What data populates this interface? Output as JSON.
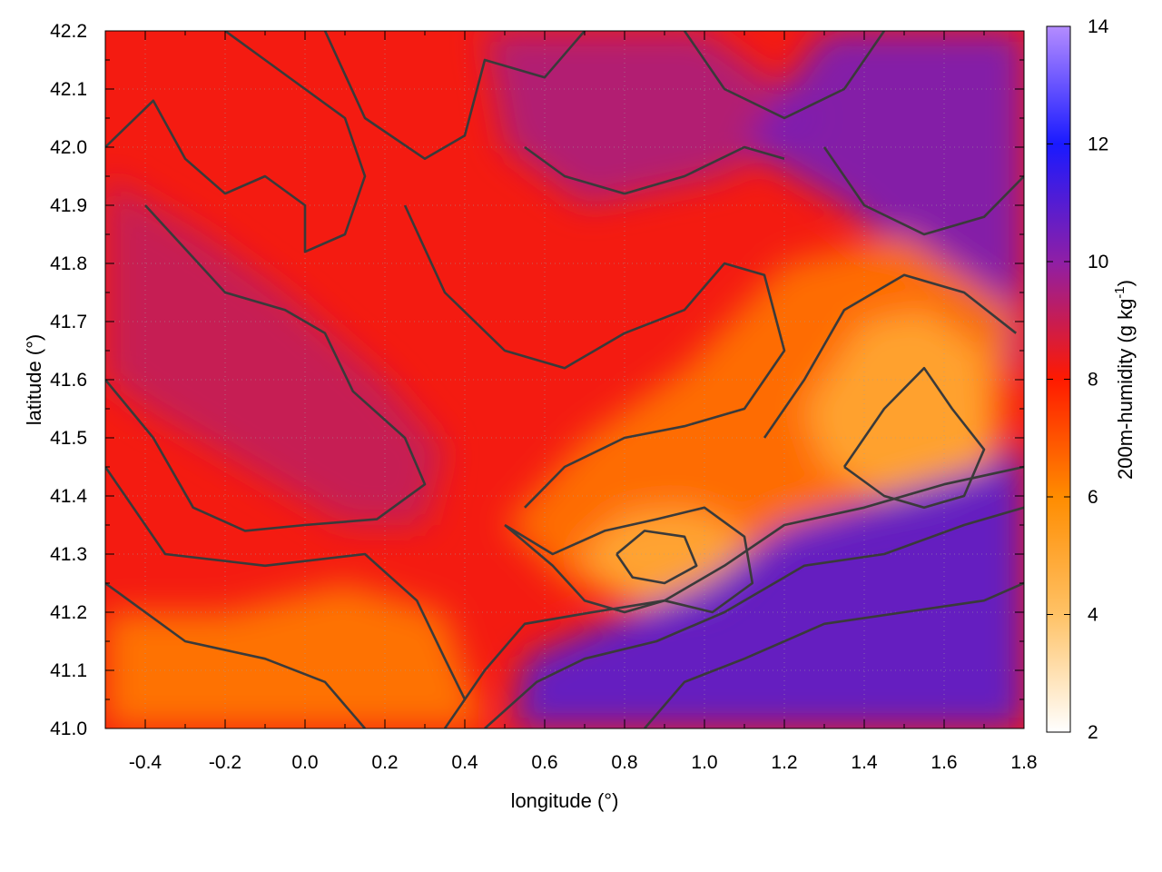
{
  "chart_data": {
    "type": "heatmap",
    "title": "",
    "xlabel": "longitude (°)",
    "ylabel": "latitude (°)",
    "xlim": [
      -0.5,
      1.8
    ],
    "ylim": [
      41.0,
      42.2
    ],
    "xticks": [
      -0.4,
      -0.2,
      0.0,
      0.2,
      0.4,
      0.6,
      0.8,
      1.0,
      1.2,
      1.4,
      1.6,
      1.8
    ],
    "xtick_labels": [
      "-0.4",
      "-0.2",
      "0.0",
      "0.2",
      "0.4",
      "0.6",
      "0.8",
      "1.0",
      "1.2",
      "1.4",
      "1.6",
      "1.8"
    ],
    "yticks": [
      41.0,
      41.1,
      41.2,
      41.3,
      41.4,
      41.5,
      41.6,
      41.7,
      41.8,
      41.9,
      42.0,
      42.1,
      42.2
    ],
    "ytick_labels": [
      "41.0",
      "41.1",
      "41.2",
      "41.3",
      "41.4",
      "41.5",
      "41.6",
      "41.7",
      "41.8",
      "41.9",
      "42.0",
      "42.1",
      "42.2"
    ],
    "grid": true,
    "colorbar": {
      "label_main": "200m-humidity (g kg",
      "label_sup": "-1",
      "label_end": ")",
      "range": [
        2,
        14
      ],
      "ticks": [
        2,
        4,
        6,
        8,
        10,
        12,
        14
      ],
      "tick_labels": [
        "2",
        "4",
        "6",
        "8",
        "10",
        "12",
        "14"
      ],
      "palette": [
        {
          "value": 2,
          "color": "#ffffff"
        },
        {
          "value": 4,
          "color": "#ffc266"
        },
        {
          "value": 6,
          "color": "#ff8c00"
        },
        {
          "value": 8,
          "color": "#ff1a00"
        },
        {
          "value": 10,
          "color": "#8f1fa6"
        },
        {
          "value": 12,
          "color": "#1a1aff"
        },
        {
          "value": 14,
          "color": "#b48cff"
        }
      ]
    },
    "regions": [
      {
        "name": "background",
        "value": 8.2
      },
      {
        "name": "west-purple",
        "value": 9.1,
        "points": [
          [
            -0.5,
            41.95
          ],
          [
            -0.25,
            41.85
          ],
          [
            -0.05,
            41.75
          ],
          [
            0.2,
            41.6
          ],
          [
            0.35,
            41.48
          ],
          [
            0.3,
            41.35
          ],
          [
            0.1,
            41.35
          ],
          [
            -0.15,
            41.45
          ],
          [
            -0.4,
            41.55
          ],
          [
            -0.5,
            41.6
          ]
        ]
      },
      {
        "name": "north-purple",
        "value": 9.5,
        "points": [
          [
            0.45,
            42.2
          ],
          [
            1.0,
            42.2
          ],
          [
            1.3,
            42.05
          ],
          [
            1.05,
            41.95
          ],
          [
            0.7,
            41.9
          ],
          [
            0.5,
            42.0
          ]
        ]
      },
      {
        "name": "northeast-blue",
        "value": 10.4,
        "points": [
          [
            1.3,
            42.2
          ],
          [
            1.8,
            42.2
          ],
          [
            1.8,
            41.6
          ],
          [
            1.6,
            41.75
          ],
          [
            1.35,
            41.9
          ],
          [
            1.1,
            42.0
          ],
          [
            1.2,
            42.1
          ]
        ]
      },
      {
        "name": "central-orange",
        "value": 6.4,
        "points": [
          [
            0.5,
            41.35
          ],
          [
            0.7,
            41.5
          ],
          [
            0.95,
            41.62
          ],
          [
            1.2,
            41.8
          ],
          [
            1.5,
            41.85
          ],
          [
            1.78,
            41.72
          ],
          [
            1.75,
            41.5
          ],
          [
            1.6,
            41.38
          ],
          [
            1.4,
            41.35
          ],
          [
            1.2,
            41.32
          ],
          [
            1.05,
            41.22
          ],
          [
            0.85,
            41.2
          ],
          [
            0.65,
            41.25
          ]
        ]
      },
      {
        "name": "central-light",
        "value": 4.9,
        "points": [
          [
            0.68,
            41.3
          ],
          [
            0.8,
            41.37
          ],
          [
            0.95,
            41.38
          ],
          [
            1.08,
            41.35
          ],
          [
            1.12,
            41.27
          ],
          [
            1.0,
            41.2
          ],
          [
            0.85,
            41.22
          ],
          [
            0.75,
            41.25
          ]
        ]
      },
      {
        "name": "east-light",
        "value": 5.0,
        "points": [
          [
            1.25,
            41.55
          ],
          [
            1.4,
            41.7
          ],
          [
            1.55,
            41.72
          ],
          [
            1.7,
            41.65
          ],
          [
            1.72,
            41.45
          ],
          [
            1.6,
            41.38
          ],
          [
            1.45,
            41.4
          ],
          [
            1.3,
            41.45
          ]
        ]
      },
      {
        "name": "southeast-sea",
        "value": 11.0,
        "points": [
          [
            0.52,
            41.0
          ],
          [
            0.55,
            41.12
          ],
          [
            0.75,
            41.18
          ],
          [
            1.0,
            41.25
          ],
          [
            1.2,
            41.35
          ],
          [
            1.45,
            41.4
          ],
          [
            1.7,
            41.45
          ],
          [
            1.8,
            41.5
          ],
          [
            1.8,
            41.0
          ]
        ]
      },
      {
        "name": "southwest-orange",
        "value": 6.3,
        "points": [
          [
            -0.5,
            41.2
          ],
          [
            -0.2,
            41.2
          ],
          [
            0.1,
            41.25
          ],
          [
            0.35,
            41.2
          ],
          [
            0.45,
            41.0
          ],
          [
            -0.5,
            41.0
          ]
        ]
      }
    ],
    "contours": [
      [
        [
          -0.5,
          42.0
        ],
        [
          -0.38,
          42.08
        ],
        [
          -0.3,
          41.98
        ],
        [
          -0.2,
          41.92
        ],
        [
          -0.1,
          41.95
        ],
        [
          0.0,
          41.9
        ],
        [
          0.0,
          41.82
        ],
        [
          0.1,
          41.85
        ],
        [
          0.15,
          41.95
        ],
        [
          0.1,
          42.05
        ],
        [
          0.0,
          42.1
        ],
        [
          -0.1,
          42.15
        ],
        [
          -0.2,
          42.2
        ]
      ],
      [
        [
          -0.4,
          41.9
        ],
        [
          -0.2,
          41.75
        ],
        [
          -0.05,
          41.72
        ],
        [
          0.05,
          41.68
        ],
        [
          0.12,
          41.58
        ],
        [
          0.25,
          41.5
        ],
        [
          0.3,
          41.42
        ],
        [
          0.18,
          41.36
        ],
        [
          0.0,
          41.35
        ],
        [
          -0.15,
          41.34
        ],
        [
          -0.28,
          41.38
        ],
        [
          -0.38,
          41.5
        ],
        [
          -0.5,
          41.6
        ]
      ],
      [
        [
          -0.5,
          41.45
        ],
        [
          -0.35,
          41.3
        ],
        [
          -0.1,
          41.28
        ],
        [
          0.15,
          41.3
        ],
        [
          0.28,
          41.22
        ],
        [
          0.35,
          41.12
        ],
        [
          0.4,
          41.05
        ]
      ],
      [
        [
          -0.5,
          41.25
        ],
        [
          -0.3,
          41.15
        ],
        [
          -0.1,
          41.12
        ],
        [
          0.05,
          41.08
        ],
        [
          0.15,
          41.0
        ]
      ],
      [
        [
          0.05,
          42.2
        ],
        [
          0.15,
          42.05
        ],
        [
          0.3,
          41.98
        ],
        [
          0.4,
          42.02
        ],
        [
          0.45,
          42.15
        ],
        [
          0.6,
          42.12
        ],
        [
          0.7,
          42.2
        ]
      ],
      [
        [
          0.25,
          41.9
        ],
        [
          0.35,
          41.75
        ],
        [
          0.5,
          41.65
        ],
        [
          0.65,
          41.62
        ],
        [
          0.8,
          41.68
        ],
        [
          0.95,
          41.72
        ],
        [
          1.05,
          41.8
        ],
        [
          1.15,
          41.78
        ],
        [
          1.2,
          41.65
        ],
        [
          1.1,
          41.55
        ],
        [
          0.95,
          41.52
        ],
        [
          0.8,
          41.5
        ],
        [
          0.65,
          41.45
        ],
        [
          0.55,
          41.38
        ]
      ],
      [
        [
          0.5,
          41.35
        ],
        [
          0.62,
          41.3
        ],
        [
          0.75,
          41.34
        ],
        [
          0.88,
          41.36
        ],
        [
          1.0,
          41.38
        ],
        [
          1.1,
          41.33
        ],
        [
          1.12,
          41.25
        ],
        [
          1.02,
          41.2
        ],
        [
          0.9,
          41.22
        ],
        [
          0.8,
          41.2
        ],
        [
          0.7,
          41.22
        ],
        [
          0.62,
          41.28
        ],
        [
          0.5,
          41.35
        ]
      ],
      [
        [
          0.78,
          41.3
        ],
        [
          0.85,
          41.34
        ],
        [
          0.95,
          41.33
        ],
        [
          0.98,
          41.28
        ],
        [
          0.9,
          41.25
        ],
        [
          0.82,
          41.26
        ],
        [
          0.78,
          41.3
        ]
      ],
      [
        [
          0.35,
          41.0
        ],
        [
          0.45,
          41.1
        ],
        [
          0.55,
          41.18
        ],
        [
          0.72,
          41.2
        ],
        [
          0.9,
          41.22
        ],
        [
          1.05,
          41.28
        ],
        [
          1.2,
          41.35
        ],
        [
          1.4,
          41.38
        ],
        [
          1.6,
          41.42
        ],
        [
          1.8,
          41.45
        ]
      ],
      [
        [
          0.45,
          41.0
        ],
        [
          0.58,
          41.08
        ],
        [
          0.7,
          41.12
        ],
        [
          0.88,
          41.15
        ],
        [
          1.05,
          41.2
        ],
        [
          1.25,
          41.28
        ],
        [
          1.45,
          41.3
        ],
        [
          1.65,
          41.35
        ],
        [
          1.8,
          41.38
        ]
      ],
      [
        [
          0.85,
          41.0
        ],
        [
          0.95,
          41.08
        ],
        [
          1.1,
          41.12
        ],
        [
          1.3,
          41.18
        ],
        [
          1.5,
          41.2
        ],
        [
          1.7,
          41.22
        ],
        [
          1.8,
          41.25
        ]
      ],
      [
        [
          1.15,
          41.5
        ],
        [
          1.25,
          41.6
        ],
        [
          1.35,
          41.72
        ],
        [
          1.5,
          41.78
        ],
        [
          1.65,
          41.75
        ],
        [
          1.78,
          41.68
        ]
      ],
      [
        [
          1.35,
          41.45
        ],
        [
          1.45,
          41.55
        ],
        [
          1.55,
          41.62
        ],
        [
          1.62,
          41.55
        ],
        [
          1.7,
          41.48
        ],
        [
          1.65,
          41.4
        ],
        [
          1.55,
          41.38
        ],
        [
          1.45,
          41.4
        ],
        [
          1.35,
          41.45
        ]
      ],
      [
        [
          0.95,
          42.2
        ],
        [
          1.05,
          42.1
        ],
        [
          1.2,
          42.05
        ],
        [
          1.35,
          42.1
        ],
        [
          1.45,
          42.2
        ]
      ],
      [
        [
          1.3,
          42.0
        ],
        [
          1.4,
          41.9
        ],
        [
          1.55,
          41.85
        ],
        [
          1.7,
          41.88
        ],
        [
          1.8,
          41.95
        ]
      ],
      [
        [
          0.55,
          42.0
        ],
        [
          0.65,
          41.95
        ],
        [
          0.8,
          41.92
        ],
        [
          0.95,
          41.95
        ],
        [
          1.1,
          42.0
        ],
        [
          1.2,
          41.98
        ]
      ]
    ]
  }
}
